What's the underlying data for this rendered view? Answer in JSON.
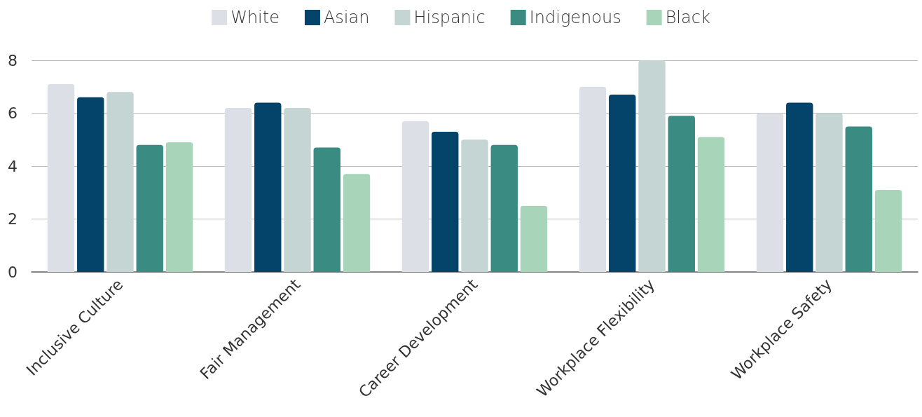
{
  "chart_data": {
    "type": "bar",
    "categories": [
      "Inclusive Culture",
      "Fair Management",
      "Career Development",
      "Workplace Flexibility",
      "Workplace Safety"
    ],
    "series": [
      {
        "name": "White",
        "color": "#dcdfe6",
        "values": [
          7.1,
          6.2,
          5.7,
          7.0,
          6.0
        ]
      },
      {
        "name": "Asian",
        "color": "#05446a",
        "values": [
          6.6,
          6.4,
          5.3,
          6.7,
          6.4
        ]
      },
      {
        "name": "Hispanic",
        "color": "#c5d5d4",
        "values": [
          6.8,
          6.2,
          5.0,
          8.0,
          6.0
        ]
      },
      {
        "name": "Indigenous",
        "color": "#3a8c83",
        "values": [
          4.8,
          4.7,
          4.8,
          5.9,
          5.5
        ]
      },
      {
        "name": "Black",
        "color": "#a8d5b9",
        "values": [
          4.9,
          3.7,
          2.5,
          5.1,
          3.1
        ]
      }
    ],
    "ylim": [
      0,
      8
    ],
    "yticks": [
      0,
      2,
      4,
      6,
      8
    ],
    "grid": "y",
    "legend": "top"
  }
}
